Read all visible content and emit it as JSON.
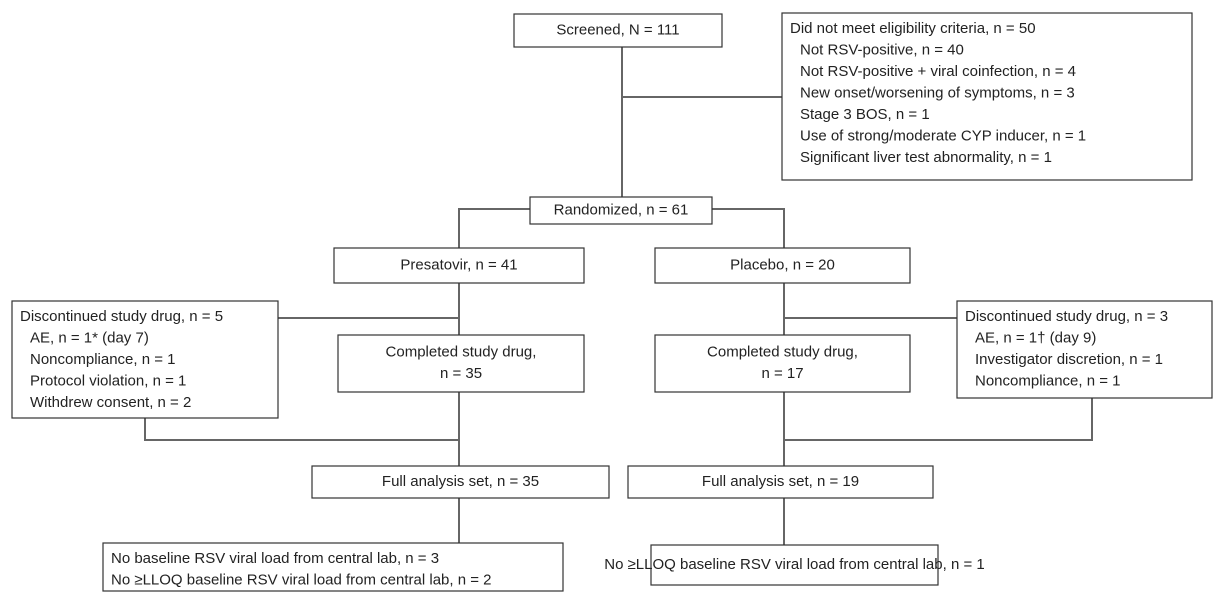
{
  "nodes": [
    {
      "lines": [
        "Screened, N = 111"
      ]
    },
    {
      "lines": [
        "Did not meet eligibility criteria, n = 50",
        "Not RSV-positive, n = 40",
        "Not RSV-positive + viral coinfection, n = 4",
        "New onset/worsening of symptoms, n = 3",
        "Stage 3 BOS, n = 1",
        "Use of strong/moderate CYP inducer, n = 1",
        "Significant liver test abnormality, n = 1"
      ]
    },
    {
      "lines": [
        "Randomized, n = 61"
      ]
    },
    {
      "lines": [
        "Presatovir, n = 41"
      ]
    },
    {
      "lines": [
        "Placebo, n = 20"
      ]
    },
    {
      "lines": [
        "Discontinued study drug, n = 5",
        "AE, n = 1* (day 7)",
        "Noncompliance, n = 1",
        "Protocol violation, n = 1",
        "Withdrew consent, n = 2"
      ]
    },
    {
      "lines": [
        "Completed study drug,",
        "n = 35"
      ]
    },
    {
      "lines": [
        "Completed study drug,",
        "n = 17"
      ]
    },
    {
      "lines": [
        "Discontinued study drug, n = 3",
        "AE, n = 1† (day 9)",
        "Investigator discretion, n = 1",
        "Noncompliance, n = 1"
      ]
    },
    {
      "lines": [
        "Full analysis set, n = 35"
      ]
    },
    {
      "lines": [
        "Full analysis set, n = 19"
      ]
    },
    {
      "lines": [
        "No baseline RSV viral load from central lab, n = 3",
        "No ≥LLOQ baseline RSV viral load from central lab, n = 2"
      ]
    },
    {
      "lines": [
        "No ≥LLOQ baseline RSV viral load from central lab, n = 1"
      ]
    }
  ]
}
